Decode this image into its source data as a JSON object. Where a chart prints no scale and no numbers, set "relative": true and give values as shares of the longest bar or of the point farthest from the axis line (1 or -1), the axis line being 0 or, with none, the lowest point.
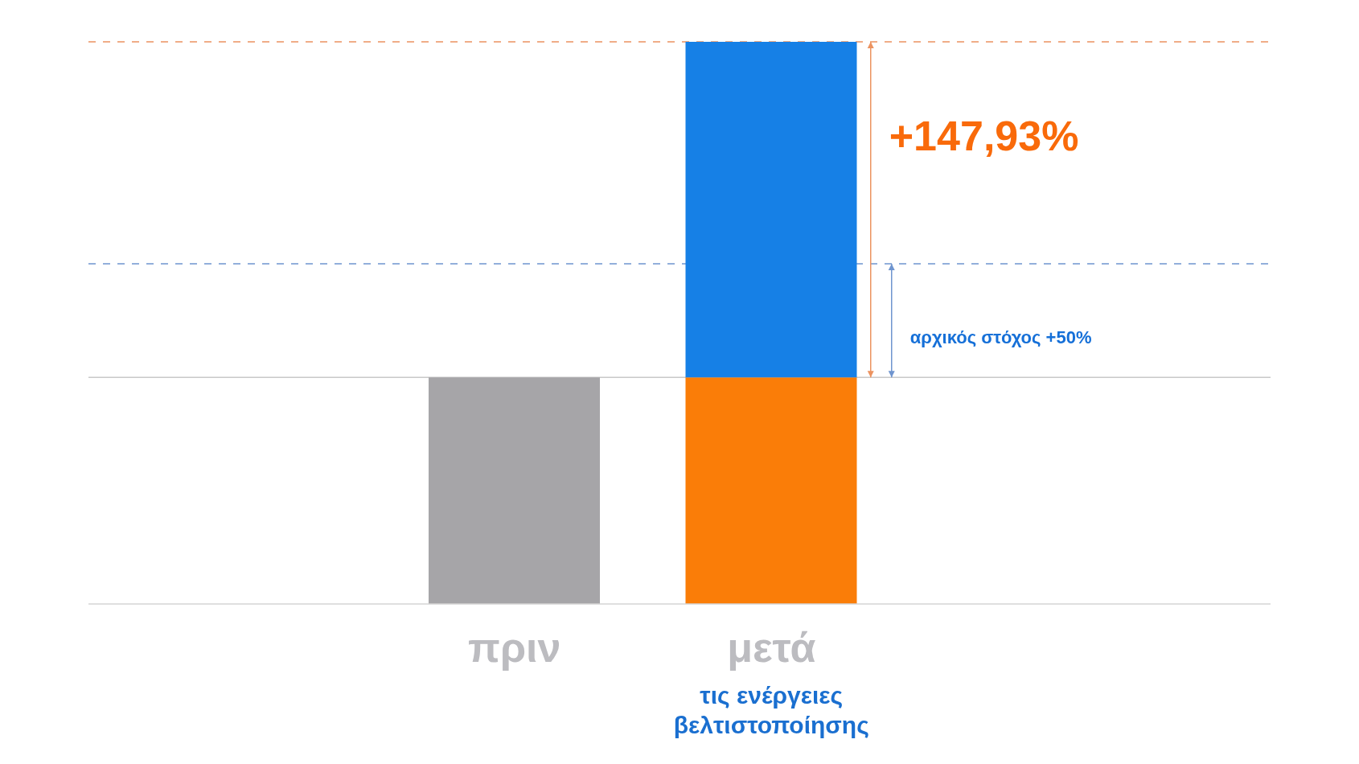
{
  "chart_data": {
    "type": "bar",
    "categories": [
      "πριν",
      "μετά"
    ],
    "stacked": true,
    "relative": true,
    "series": [
      {
        "colors": [
          "#a6a5a8",
          "#fa7d08"
        ],
        "values": [
          0.403,
          0.403
        ]
      },
      {
        "color": "#1680e6",
        "values": [
          null,
          0.597
        ]
      }
    ],
    "ref_lines": [
      {
        "axis": "y",
        "value": 1,
        "color": "#ec9360",
        "line_style": "dashed"
      },
      {
        "axis": "y",
        "value": 0.605,
        "color": "#6f95cf",
        "line_style": "dashed"
      },
      {
        "axis": "y",
        "value": 0.403,
        "color": "#c9c9c9",
        "line_style": "solid"
      }
    ],
    "annotations": [
      "+147,93%",
      "αρχικός στόχος +50%",
      "τις ενέργειες βελτιστοποίησης"
    ]
  }
}
